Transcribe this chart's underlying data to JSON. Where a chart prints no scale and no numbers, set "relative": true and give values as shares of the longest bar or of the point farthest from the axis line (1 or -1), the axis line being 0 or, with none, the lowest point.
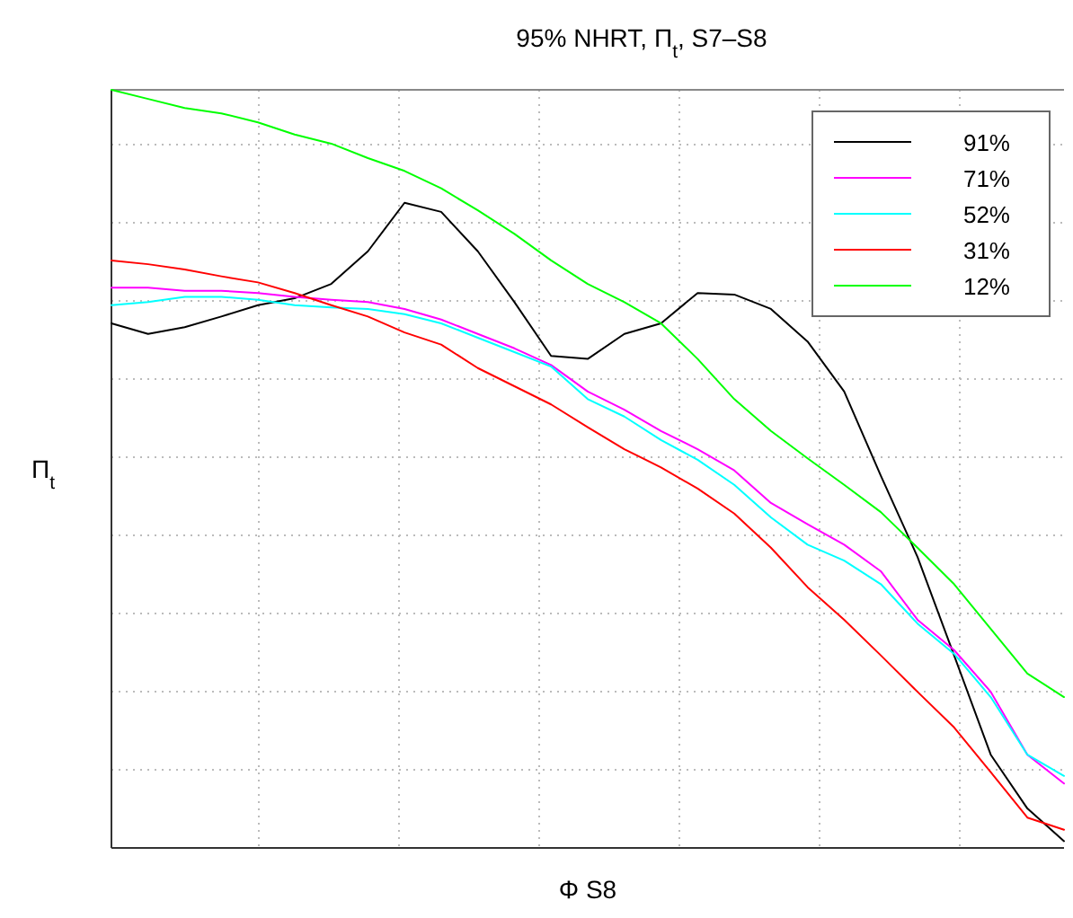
{
  "chart_data": {
    "type": "line",
    "title": "95% NHRT, Π$_{t}$, S7–S8",
    "xlabel": "Φ S8",
    "ylabel": "Π$_{t}$",
    "relative": true,
    "grid": true,
    "legend": "top right",
    "line_style": "solid",
    "marker": "none",
    "categories": [
      null,
      null,
      null,
      null,
      null,
      null,
      null,
      null,
      null,
      null,
      null,
      null,
      null,
      null,
      null,
      null,
      null,
      null,
      null,
      null,
      null,
      null,
      null,
      null,
      null,
      null,
      null
    ],
    "series": [
      {
        "name": "91%",
        "color": "#000000",
        "values": [
          0.692,
          0.678,
          0.687,
          0.701,
          0.716,
          0.725,
          0.744,
          0.787,
          0.851,
          0.839,
          0.787,
          0.72,
          0.649,
          0.645,
          0.678,
          0.692,
          0.732,
          0.73,
          0.711,
          0.668,
          0.602,
          0.491,
          0.384,
          0.254,
          0.123,
          0.052,
          0.009
        ]
      },
      {
        "name": "71%",
        "color": "#ff00ff",
        "values": [
          0.739,
          0.739,
          0.735,
          0.735,
          0.732,
          0.727,
          0.723,
          0.72,
          0.711,
          0.697,
          0.678,
          0.659,
          0.637,
          0.602,
          0.578,
          0.55,
          0.526,
          0.498,
          0.455,
          0.427,
          0.4,
          0.365,
          0.301,
          0.261,
          0.206,
          0.123,
          0.085
        ]
      },
      {
        "name": "52%",
        "color": "#00ffff",
        "values": [
          0.716,
          0.72,
          0.727,
          0.727,
          0.723,
          0.716,
          0.713,
          0.711,
          0.704,
          0.692,
          0.673,
          0.654,
          0.635,
          0.592,
          0.569,
          0.538,
          0.512,
          0.479,
          0.436,
          0.4,
          0.379,
          0.348,
          0.296,
          0.256,
          0.199,
          0.123,
          0.095
        ]
      },
      {
        "name": "31%",
        "color": "#ff0000",
        "values": [
          0.775,
          0.77,
          0.763,
          0.754,
          0.746,
          0.732,
          0.716,
          0.701,
          0.68,
          0.664,
          0.633,
          0.609,
          0.585,
          0.555,
          0.526,
          0.502,
          0.474,
          0.441,
          0.396,
          0.344,
          0.301,
          0.254,
          0.206,
          0.159,
          0.1,
          0.04,
          0.024
        ]
      },
      {
        "name": "12%",
        "color": "#00ff00",
        "values": [
          1.0,
          0.988,
          0.976,
          0.969,
          0.957,
          0.941,
          0.929,
          0.91,
          0.893,
          0.87,
          0.841,
          0.81,
          0.775,
          0.744,
          0.72,
          0.692,
          0.645,
          0.592,
          0.55,
          0.514,
          0.479,
          0.443,
          0.396,
          0.348,
          0.289,
          0.23,
          0.199
        ]
      }
    ]
  }
}
